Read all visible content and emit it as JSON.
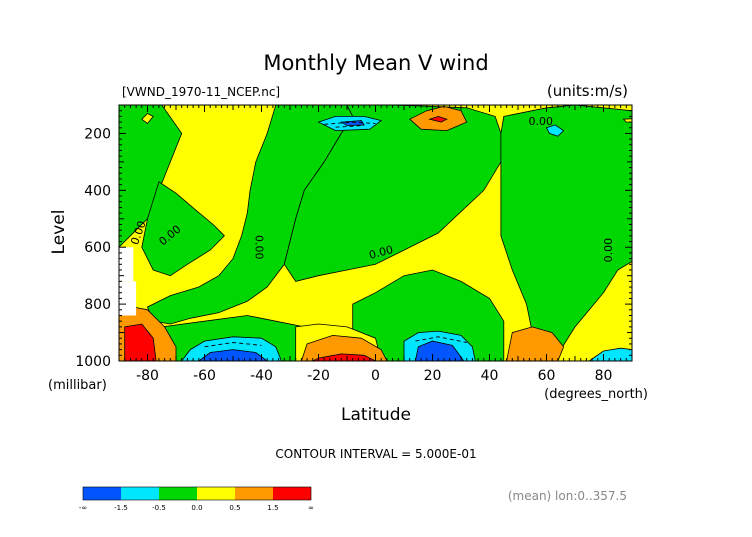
{
  "chart_data": {
    "type": "heatmap",
    "title": "Monthly Mean V wind",
    "file_label": "[VWND_1970-11_NCEP.nc]",
    "units_label": "(units:m/s)",
    "xlabel": "Latitude",
    "x_unit_label": "(degrees_north)",
    "ylabel": "Level",
    "y_unit_label": "(millibar)",
    "xlim": [
      -90,
      90
    ],
    "ylim": [
      1000,
      100
    ],
    "x_ticks": [
      -80,
      -60,
      -40,
      -20,
      0,
      20,
      40,
      60,
      80
    ],
    "x_tick_labels": [
      "-80",
      "-60",
      "-40",
      "-20",
      "0",
      "20",
      "40",
      "60",
      "80"
    ],
    "y_ticks": [
      200,
      400,
      600,
      800,
      1000
    ],
    "y_tick_labels": [
      "200",
      "400",
      "600",
      "800",
      "1000"
    ],
    "contour_interval_label": "CONTOUR INTERVAL = 5.000E-01",
    "footer_label": "(mean) lon:0..357.5",
    "contour_labels": [
      {
        "text": "0.00",
        "lat": -83,
        "lev": 550,
        "rotate": -70
      },
      {
        "text": "0.00",
        "lat": -72,
        "lev": 560,
        "rotate": -40
      },
      {
        "text": "0.00",
        "lat": -41,
        "lev": 600,
        "rotate": 90
      },
      {
        "text": "0.00",
        "lat": 2,
        "lev": 620,
        "rotate": -15
      },
      {
        "text": "0.00",
        "lat": 58,
        "lev": 160,
        "rotate": 0
      },
      {
        "text": "0.00",
        "lat": 82,
        "lev": 610,
        "rotate": -90
      }
    ],
    "colorbar": {
      "colors": [
        "#0055ff",
        "#00e6ff",
        "#00d700",
        "#ffff00",
        "#ff9900",
        "#ff0000"
      ],
      "tick_labels": [
        "-∞",
        "-1.5",
        "-0.5",
        "0.0",
        "0.5",
        "1.5",
        "∞"
      ]
    },
    "colors": {
      "blue": "#0055ff",
      "cyan": "#00e6ff",
      "green": "#00d700",
      "yellow": "#ffff00",
      "orange": "#ff9900",
      "red": "#ff0000"
    },
    "regions": [
      {
        "color": "green",
        "pts": [
          [
            -90,
            100
          ],
          [
            -75,
            100
          ],
          [
            -68,
            200
          ],
          [
            -72,
            300
          ],
          [
            -76,
            400
          ],
          [
            -80,
            500
          ],
          [
            -86,
            560
          ],
          [
            -90,
            600
          ]
        ]
      },
      {
        "color": "green",
        "pts": [
          [
            -76,
            370
          ],
          [
            -70,
            410
          ],
          [
            -63,
            470
          ],
          [
            -57,
            520
          ],
          [
            -53,
            560
          ],
          [
            -58,
            610
          ],
          [
            -66,
            660
          ],
          [
            -72,
            700
          ],
          [
            -78,
            680
          ],
          [
            -82,
            600
          ],
          [
            -80,
            500
          ]
        ]
      },
      {
        "color": "green",
        "pts": [
          [
            -35,
            100
          ],
          [
            -20,
            100
          ],
          [
            -10,
            100
          ],
          [
            -8,
            140
          ],
          [
            -12,
            200
          ],
          [
            -18,
            300
          ],
          [
            -25,
            400
          ],
          [
            -28,
            500
          ],
          [
            -30,
            580
          ],
          [
            -32,
            660
          ],
          [
            -38,
            740
          ],
          [
            -45,
            790
          ],
          [
            -55,
            830
          ],
          [
            -65,
            850
          ],
          [
            -72,
            870
          ],
          [
            -78,
            860
          ],
          [
            -80,
            810
          ],
          [
            -72,
            770
          ],
          [
            -62,
            740
          ],
          [
            -55,
            700
          ],
          [
            -50,
            640
          ],
          [
            -47,
            560
          ],
          [
            -45,
            480
          ],
          [
            -44,
            400
          ],
          [
            -42,
            300
          ],
          [
            -38,
            200
          ]
        ]
      },
      {
        "color": "green",
        "pts": [
          [
            -10,
            100
          ],
          [
            5,
            100
          ],
          [
            20,
            105
          ],
          [
            32,
            110
          ],
          [
            42,
            140
          ],
          [
            44,
            200
          ],
          [
            44,
            300
          ],
          [
            38,
            400
          ],
          [
            22,
            550
          ],
          [
            10,
            610
          ],
          [
            0,
            660
          ],
          [
            -10,
            680
          ],
          [
            -20,
            700
          ],
          [
            -28,
            720
          ],
          [
            -32,
            660
          ],
          [
            -30,
            580
          ],
          [
            -28,
            500
          ],
          [
            -25,
            400
          ],
          [
            -18,
            300
          ],
          [
            -12,
            200
          ],
          [
            -8,
            140
          ]
        ]
      },
      {
        "color": "green",
        "pts": [
          [
            45,
            140
          ],
          [
            60,
            110
          ],
          [
            70,
            100
          ],
          [
            80,
            110
          ],
          [
            90,
            120
          ],
          [
            90,
            650
          ],
          [
            85,
            680
          ],
          [
            80,
            760
          ],
          [
            75,
            820
          ],
          [
            70,
            880
          ],
          [
            65,
            960
          ],
          [
            60,
            980
          ],
          [
            55,
            900
          ],
          [
            53,
            800
          ],
          [
            48,
            680
          ],
          [
            44,
            560
          ],
          [
            44,
            400
          ],
          [
            44,
            300
          ],
          [
            44,
            200
          ]
        ]
      },
      {
        "color": "green",
        "pts": [
          [
            -8,
            800
          ],
          [
            0,
            760
          ],
          [
            10,
            700
          ],
          [
            20,
            680
          ],
          [
            30,
            720
          ],
          [
            40,
            780
          ],
          [
            45,
            860
          ],
          [
            45,
            1000
          ],
          [
            -8,
            1000
          ]
        ]
      },
      {
        "color": "green",
        "pts": [
          [
            -75,
            880
          ],
          [
            -60,
            860
          ],
          [
            -45,
            840
          ],
          [
            -35,
            860
          ],
          [
            -25,
            880
          ],
          [
            -20,
            920
          ],
          [
            -20,
            1000
          ],
          [
            -78,
            1000
          ]
        ]
      },
      {
        "color": "yellow",
        "pts": [
          [
            -28,
            880
          ],
          [
            -20,
            870
          ],
          [
            -10,
            880
          ],
          [
            0,
            920
          ],
          [
            2,
            1000
          ],
          [
            -28,
            1000
          ]
        ]
      },
      {
        "color": "orange",
        "pts": [
          [
            -24,
            940
          ],
          [
            -15,
            910
          ],
          [
            -5,
            920
          ],
          [
            2,
            960
          ],
          [
            4,
            1000
          ],
          [
            -26,
            1000
          ]
        ]
      },
      {
        "color": "red",
        "pts": [
          [
            -20,
            990
          ],
          [
            -12,
            975
          ],
          [
            -4,
            980
          ],
          [
            0,
            1000
          ],
          [
            -22,
            1000
          ]
        ]
      },
      {
        "color": "cyan",
        "pts": [
          [
            -65,
            960
          ],
          [
            -60,
            930
          ],
          [
            -50,
            915
          ],
          [
            -40,
            920
          ],
          [
            -35,
            950
          ],
          [
            -33,
            1000
          ],
          [
            -68,
            1000
          ]
        ]
      },
      {
        "color": "blue",
        "pts": [
          [
            -62,
            1000
          ],
          [
            -58,
            970
          ],
          [
            -50,
            960
          ],
          [
            -42,
            970
          ],
          [
            -38,
            1000
          ]
        ]
      },
      {
        "color": "cyan",
        "pts": [
          [
            10,
            1000
          ],
          [
            10,
            930
          ],
          [
            15,
            900
          ],
          [
            22,
            895
          ],
          [
            30,
            910
          ],
          [
            34,
            950
          ],
          [
            35,
            1000
          ]
        ]
      },
      {
        "color": "blue",
        "pts": [
          [
            14,
            1000
          ],
          [
            15,
            950
          ],
          [
            20,
            930
          ],
          [
            27,
            945
          ],
          [
            31,
            1000
          ]
        ]
      },
      {
        "color": "orange",
        "pts": [
          [
            -90,
            820
          ],
          [
            -85,
            810
          ],
          [
            -80,
            820
          ],
          [
            -74,
            880
          ],
          [
            -70,
            950
          ],
          [
            -70,
            1000
          ],
          [
            -90,
            1000
          ]
        ]
      },
      {
        "color": "red",
        "pts": [
          [
            -88,
            880
          ],
          [
            -82,
            870
          ],
          [
            -78,
            920
          ],
          [
            -77,
            1000
          ],
          [
            -88,
            1000
          ]
        ]
      },
      {
        "color": "orange",
        "pts": [
          [
            46,
            1000
          ],
          [
            48,
            900
          ],
          [
            55,
            880
          ],
          [
            62,
            900
          ],
          [
            66,
            950
          ],
          [
            64,
            1000
          ]
        ]
      },
      {
        "color": "cyan",
        "pts": [
          [
            75,
            1000
          ],
          [
            80,
            965
          ],
          [
            86,
            955
          ],
          [
            90,
            960
          ],
          [
            90,
            1000
          ]
        ]
      },
      {
        "color": "cyan",
        "pts": [
          [
            -20,
            160
          ],
          [
            -14,
            140
          ],
          [
            -4,
            140
          ],
          [
            2,
            155
          ],
          [
            -2,
            185
          ],
          [
            -14,
            190
          ]
        ]
      },
      {
        "color": "blue",
        "pts": [
          [
            -12,
            160
          ],
          [
            -5,
            155
          ],
          [
            -4,
            170
          ],
          [
            -10,
            172
          ]
        ]
      },
      {
        "color": "orange",
        "pts": [
          [
            12,
            150
          ],
          [
            18,
            120
          ],
          [
            24,
            105
          ],
          [
            30,
            120
          ],
          [
            32,
            160
          ],
          [
            25,
            190
          ],
          [
            16,
            185
          ]
        ]
      },
      {
        "color": "red",
        "pts": [
          [
            19,
            150
          ],
          [
            22,
            140
          ],
          [
            25,
            150
          ],
          [
            23,
            160
          ]
        ]
      },
      {
        "color": "cyan",
        "pts": [
          [
            60,
            180
          ],
          [
            63,
            170
          ],
          [
            66,
            190
          ],
          [
            64,
            210
          ],
          [
            61,
            200
          ]
        ]
      },
      {
        "color": "yellow",
        "pts": [
          [
            -82,
            150
          ],
          [
            -80,
            130
          ],
          [
            -78,
            140
          ],
          [
            -80,
            165
          ]
        ]
      },
      {
        "color": "yellow",
        "pts": [
          [
            87,
            150
          ],
          [
            90,
            148
          ],
          [
            90,
            160
          ],
          [
            88,
            160
          ]
        ]
      }
    ],
    "blanks": [
      {
        "pts": [
          [
            -90,
            600
          ],
          [
            -85,
            600
          ],
          [
            -85,
            720
          ],
          [
            -90,
            720
          ]
        ]
      },
      {
        "pts": [
          [
            -90,
            720
          ],
          [
            -84,
            720
          ],
          [
            -84,
            840
          ],
          [
            -90,
            840
          ]
        ]
      }
    ],
    "dashed_lines": [
      {
        "pts": [
          [
            -18,
            168
          ],
          [
            -8,
            160
          ],
          [
            0,
            165
          ]
        ]
      },
      {
        "pts": [
          [
            -14,
            178
          ],
          [
            -4,
            172
          ]
        ]
      },
      {
        "pts": [
          [
            -60,
            950
          ],
          [
            -50,
            935
          ],
          [
            -40,
            945
          ]
        ]
      },
      {
        "pts": [
          [
            14,
            930
          ],
          [
            22,
            915
          ],
          [
            32,
            935
          ]
        ]
      }
    ]
  }
}
